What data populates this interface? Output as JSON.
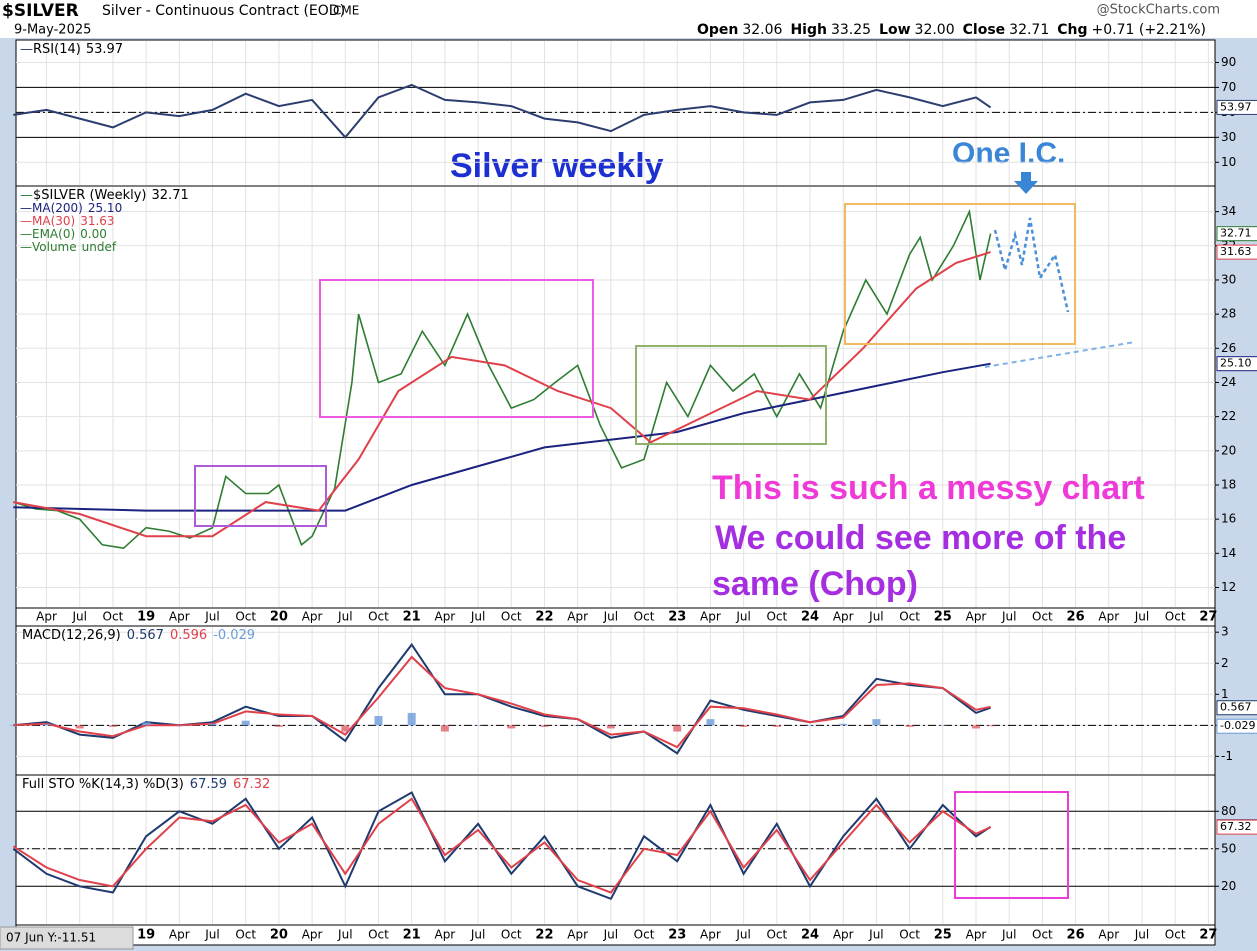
{
  "header": {
    "symbol": "$SILVER",
    "name": "Silver - Continuous Contract (EOD)",
    "exchange": "CME",
    "date": "9-May-2025",
    "source": "@StockCharts.com",
    "quote": [
      {
        "label": "Open",
        "value": "32.06"
      },
      {
        "label": "High",
        "value": "33.25"
      },
      {
        "label": "Low",
        "value": "32.00"
      },
      {
        "label": "Close",
        "value": "32.71"
      },
      {
        "label": "Chg",
        "value": "+0.71 (+2.21%)"
      }
    ],
    "cursor": "07 Jun Y:-11.51"
  },
  "chart_data": [
    {
      "type": "line",
      "xlim": [
        2018.02,
        2027.05
      ],
      "xticks": [
        {
          "value": 2018.25,
          "label": "Apr"
        },
        {
          "value": 2018.5,
          "label": "Jul"
        },
        {
          "value": 2018.75,
          "label": "Oct"
        },
        {
          "value": 2019,
          "label": "19"
        },
        {
          "value": 2019.25,
          "label": "Apr"
        },
        {
          "value": 2019.5,
          "label": "Jul"
        },
        {
          "value": 2019.75,
          "label": "Oct"
        },
        {
          "value": 2020,
          "label": "20"
        },
        {
          "value": 2020.25,
          "label": "Apr"
        },
        {
          "value": 2020.5,
          "label": "Jul"
        },
        {
          "value": 2020.75,
          "label": "Oct"
        },
        {
          "value": 2021,
          "label": "21"
        },
        {
          "value": 2021.25,
          "label": "Apr"
        },
        {
          "value": 2021.5,
          "label": "Jul"
        },
        {
          "value": 2021.75,
          "label": "Oct"
        },
        {
          "value": 2022,
          "label": "22"
        },
        {
          "value": 2022.25,
          "label": "Apr"
        },
        {
          "value": 2022.5,
          "label": "Jul"
        },
        {
          "value": 2022.75,
          "label": "Oct"
        },
        {
          "value": 2023,
          "label": "23"
        },
        {
          "value": 2023.25,
          "label": "Apr"
        },
        {
          "value": 2023.5,
          "label": "Jul"
        },
        {
          "value": 2023.75,
          "label": "Oct"
        },
        {
          "value": 2024,
          "label": "24"
        },
        {
          "value": 2024.25,
          "label": "Apr"
        },
        {
          "value": 2024.5,
          "label": "Jul"
        },
        {
          "value": 2024.75,
          "label": "Oct"
        },
        {
          "value": 2025,
          "label": "25"
        },
        {
          "value": 2025.25,
          "label": "Apr"
        },
        {
          "value": 2025.5,
          "label": "Jul"
        },
        {
          "value": 2025.75,
          "label": "Oct"
        },
        {
          "value": 2026,
          "label": "26"
        },
        {
          "value": 2026.25,
          "label": "Apr"
        },
        {
          "value": 2026.5,
          "label": "Jul"
        },
        {
          "value": 2026.75,
          "label": "Oct"
        },
        {
          "value": 2027,
          "label": "27"
        }
      ],
      "ylim": [
        10.8,
        35.5
      ],
      "yticks": [
        12,
        14,
        16,
        18,
        20,
        22,
        24,
        26,
        28,
        30,
        32,
        34
      ],
      "grid": true,
      "series": [
        {
          "name": "$SILVER (Weekly)",
          "legend_value": "32.71",
          "color": "#2e7d32",
          "x": [
            2018.0,
            2018.17,
            2018.33,
            2018.5,
            2018.67,
            2018.83,
            2019.0,
            2019.17,
            2019.33,
            2019.5,
            2019.6,
            2019.75,
            2019.92,
            2020.0,
            2020.17,
            2020.25,
            2020.42,
            2020.55,
            2020.6,
            2020.75,
            2020.92,
            2021.08,
            2021.25,
            2021.42,
            2021.58,
            2021.75,
            2021.92,
            2022.08,
            2022.25,
            2022.42,
            2022.58,
            2022.75,
            2022.92,
            2023.08,
            2023.25,
            2023.42,
            2023.58,
            2023.75,
            2023.92,
            2024.08,
            2024.25,
            2024.42,
            2024.58,
            2024.75,
            2024.83,
            2024.92,
            2025.08,
            2025.2,
            2025.28,
            2025.36
          ],
          "values": [
            17.0,
            16.6,
            16.5,
            16.0,
            14.5,
            14.3,
            15.5,
            15.3,
            14.9,
            15.5,
            18.5,
            17.5,
            17.5,
            18.0,
            14.5,
            15.0,
            17.8,
            24.0,
            28.0,
            24.0,
            24.5,
            27.0,
            25.0,
            28.0,
            25.0,
            22.5,
            23.0,
            24.0,
            25.0,
            21.5,
            19.0,
            19.5,
            24.0,
            22.0,
            25.0,
            23.5,
            24.5,
            22.0,
            24.5,
            22.5,
            27.0,
            30.0,
            28.0,
            31.5,
            32.5,
            30.0,
            32.0,
            34.0,
            30.0,
            32.71
          ]
        },
        {
          "name": "MA(200)",
          "legend_value": "25.10",
          "color": "#1a237e",
          "x": [
            2018.0,
            2019.0,
            2020.0,
            2020.5,
            2021.0,
            2022.0,
            2023.0,
            2023.5,
            2024.0,
            2024.5,
            2025.0,
            2025.36
          ],
          "values": [
            16.7,
            16.5,
            16.5,
            16.5,
            18.0,
            20.2,
            21.1,
            22.2,
            23.0,
            23.8,
            24.6,
            25.1
          ]
        },
        {
          "name": "MA(30)",
          "legend_value": "31.63",
          "color": "#e0404a",
          "x": [
            2018.0,
            2018.5,
            2019.0,
            2019.5,
            2019.9,
            2020.3,
            2020.6,
            2020.9,
            2021.3,
            2021.7,
            2022.1,
            2022.5,
            2022.8,
            2023.2,
            2023.6,
            2024.0,
            2024.4,
            2024.8,
            2025.1,
            2025.36
          ],
          "values": [
            17.0,
            16.3,
            15.0,
            15.0,
            17.0,
            16.5,
            19.5,
            23.5,
            25.5,
            25.0,
            23.5,
            22.5,
            20.5,
            22.0,
            23.5,
            23.0,
            26.0,
            29.5,
            31.0,
            31.63
          ]
        }
      ],
      "legend_extra": [
        {
          "name": "EMA(0)",
          "legend_value": "0.00",
          "color": "#2e7d32"
        },
        {
          "name": "Volume",
          "legend_value": "undef",
          "color": "#2e7d32"
        }
      ],
      "annotations": [
        "Silver weekly",
        "One I.C.",
        "This is such a messy chart",
        "We could see more of the",
        "same (Chop)"
      ]
    },
    {
      "type": "line",
      "ylim": [
        -9,
        108
      ],
      "yticks": [
        10,
        30,
        50,
        70,
        90
      ],
      "levels": [
        30,
        50,
        70
      ],
      "x": [
        2018.0,
        2018.25,
        2018.5,
        2018.75,
        2019.0,
        2019.25,
        2019.5,
        2019.75,
        2020.0,
        2020.25,
        2020.5,
        2020.75,
        2021.0,
        2021.25,
        2021.5,
        2021.75,
        2022.0,
        2022.25,
        2022.5,
        2022.75,
        2023.0,
        2023.25,
        2023.5,
        2023.75,
        2024.0,
        2024.25,
        2024.5,
        2024.75,
        2025.0,
        2025.25,
        2025.36
      ],
      "series": [
        {
          "name": "RSI(14)",
          "legend_value": "53.97",
          "color": "#2c3e70",
          "values": [
            48,
            52,
            45,
            38,
            50,
            47,
            52,
            65,
            55,
            60,
            30,
            62,
            72,
            60,
            58,
            55,
            45,
            42,
            35,
            48,
            52,
            55,
            50,
            48,
            58,
            60,
            68,
            62,
            55,
            62,
            53.97
          ]
        }
      ]
    },
    {
      "type": "line",
      "ylim": [
        -1.6,
        3.2
      ],
      "yticks": [
        -1,
        0,
        1,
        2,
        3
      ],
      "levels": [
        0
      ],
      "x": [
        2018.0,
        2018.25,
        2018.5,
        2018.75,
        2019.0,
        2019.25,
        2019.5,
        2019.75,
        2020.0,
        2020.25,
        2020.5,
        2020.75,
        2021.0,
        2021.25,
        2021.5,
        2021.75,
        2022.0,
        2022.25,
        2022.5,
        2022.75,
        2023.0,
        2023.25,
        2023.5,
        2023.75,
        2024.0,
        2024.25,
        2024.5,
        2024.75,
        2025.0,
        2025.25,
        2025.36
      ],
      "label": "MACD(12,26,9)",
      "series": [
        {
          "name": "MACD",
          "legend_value": "0.567",
          "color": "#1f3a6e",
          "values": [
            0.0,
            0.1,
            -0.3,
            -0.4,
            0.1,
            0.0,
            0.1,
            0.6,
            0.3,
            0.3,
            -0.5,
            1.2,
            2.6,
            1.0,
            1.0,
            0.6,
            0.3,
            0.2,
            -0.4,
            -0.2,
            -0.9,
            0.8,
            0.5,
            0.3,
            0.1,
            0.3,
            1.5,
            1.3,
            1.2,
            0.4,
            0.567
          ]
        },
        {
          "name": "Signal",
          "legend_value": "0.596",
          "color": "#e0404a",
          "values": [
            0.0,
            0.05,
            -0.2,
            -0.35,
            0.0,
            0.0,
            0.05,
            0.45,
            0.35,
            0.3,
            -0.3,
            0.9,
            2.2,
            1.2,
            1.0,
            0.7,
            0.35,
            0.2,
            -0.3,
            -0.2,
            -0.7,
            0.6,
            0.55,
            0.35,
            0.1,
            0.25,
            1.3,
            1.35,
            1.2,
            0.5,
            0.596
          ]
        },
        {
          "name": "Histogram",
          "legend_value": "-0.029",
          "color": "#6a9bd8",
          "type": "bar",
          "values": [
            0.0,
            0.05,
            -0.1,
            -0.05,
            0.1,
            0.0,
            0.05,
            0.15,
            -0.05,
            0.0,
            -0.2,
            0.3,
            0.4,
            -0.2,
            0.0,
            -0.1,
            -0.05,
            0.0,
            -0.1,
            0.0,
            -0.2,
            0.2,
            -0.05,
            -0.05,
            0.0,
            0.05,
            0.2,
            -0.05,
            0.0,
            -0.1,
            -0.029
          ]
        }
      ]
    },
    {
      "type": "line",
      "ylim": [
        -11,
        109
      ],
      "yticks": [
        20,
        50,
        80
      ],
      "levels": [
        20,
        50,
        80
      ],
      "x": [
        2018.0,
        2018.25,
        2018.5,
        2018.75,
        2019.0,
        2019.25,
        2019.5,
        2019.75,
        2020.0,
        2020.25,
        2020.5,
        2020.75,
        2021.0,
        2021.25,
        2021.5,
        2021.75,
        2022.0,
        2022.25,
        2022.5,
        2022.75,
        2023.0,
        2023.25,
        2023.5,
        2023.75,
        2024.0,
        2024.25,
        2024.5,
        2024.75,
        2025.0,
        2025.25,
        2025.36
      ],
      "label": "Full STO %K(14,3) %D(3)",
      "series": [
        {
          "name": "%K",
          "legend_value": "67.59",
          "color": "#1f3a6e",
          "values": [
            50,
            30,
            20,
            15,
            60,
            80,
            70,
            90,
            50,
            75,
            20,
            80,
            95,
            40,
            70,
            30,
            60,
            20,
            10,
            60,
            40,
            85,
            30,
            70,
            20,
            60,
            90,
            50,
            85,
            60,
            67.59
          ]
        },
        {
          "name": "%D",
          "legend_value": "67.32",
          "color": "#e0404a",
          "values": [
            52,
            35,
            25,
            20,
            50,
            75,
            72,
            85,
            55,
            70,
            30,
            70,
            90,
            45,
            65,
            35,
            55,
            25,
            15,
            50,
            45,
            80,
            35,
            65,
            25,
            55,
            85,
            55,
            80,
            62,
            67.32
          ]
        }
      ]
    }
  ]
}
